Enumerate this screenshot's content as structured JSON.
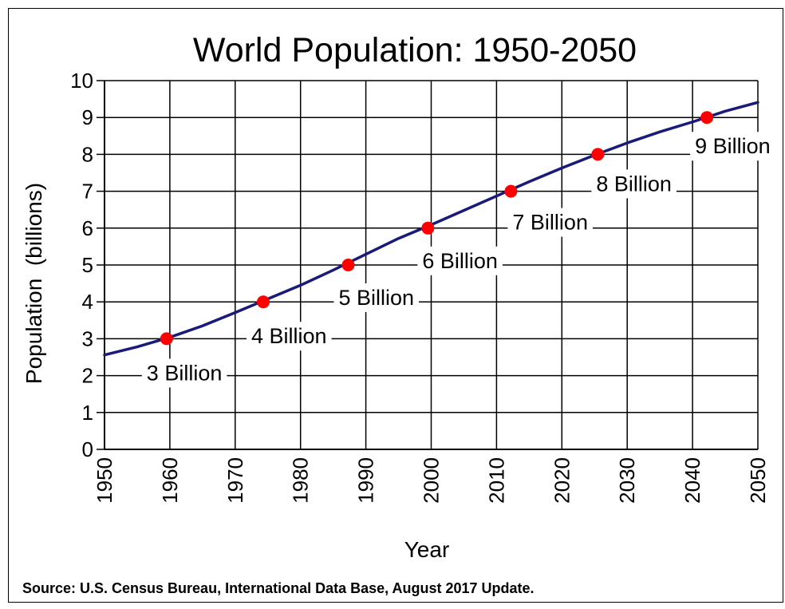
{
  "chart_data": {
    "type": "line",
    "title": "World Population: 1950-2050",
    "xlabel": "Year",
    "ylabel": "Population  (billions)",
    "xlim": [
      1950,
      2050
    ],
    "ylim": [
      0,
      10
    ],
    "x_ticks": [
      "1950",
      "1960",
      "1970",
      "1980",
      "1990",
      "2000",
      "2010",
      "2020",
      "2030",
      "2040",
      "2050"
    ],
    "y_ticks": [
      "0",
      "1",
      "2",
      "3",
      "4",
      "5",
      "6",
      "7",
      "8",
      "9",
      "10"
    ],
    "grid": true,
    "line_color": "#1a1a7a",
    "marker_color": "#ff0000",
    "series": [
      {
        "x": [
          1950,
          1955,
          1960,
          1965,
          1970,
          1975,
          1980,
          1985,
          1990,
          1995,
          2000,
          2005,
          2010,
          2015,
          2020,
          2025,
          2030,
          2035,
          2040,
          2045,
          2050
        ],
        "values": [
          2.56,
          2.78,
          3.04,
          3.35,
          3.71,
          4.08,
          4.45,
          4.86,
          5.29,
          5.72,
          6.09,
          6.48,
          6.87,
          7.26,
          7.63,
          7.98,
          8.31,
          8.61,
          8.88,
          9.17,
          9.41
        ]
      }
    ],
    "milestones": [
      {
        "x": 1959.5,
        "y": 3,
        "label": "3 Billion"
      },
      {
        "x": 1974.3,
        "y": 4,
        "label": "4 Billion"
      },
      {
        "x": 1987.3,
        "y": 5,
        "label": "5 Billion"
      },
      {
        "x": 1999.5,
        "y": 6,
        "label": "6 Billion"
      },
      {
        "x": 2012.2,
        "y": 7,
        "label": "7 Billion"
      },
      {
        "x": 2025.5,
        "y": 8,
        "label": "8 Billion"
      },
      {
        "x": 2042.2,
        "y": 9,
        "label": "9 Billion"
      }
    ]
  },
  "source": "Source: U.S. Census Bureau, International Data Base, August 2017 Update."
}
